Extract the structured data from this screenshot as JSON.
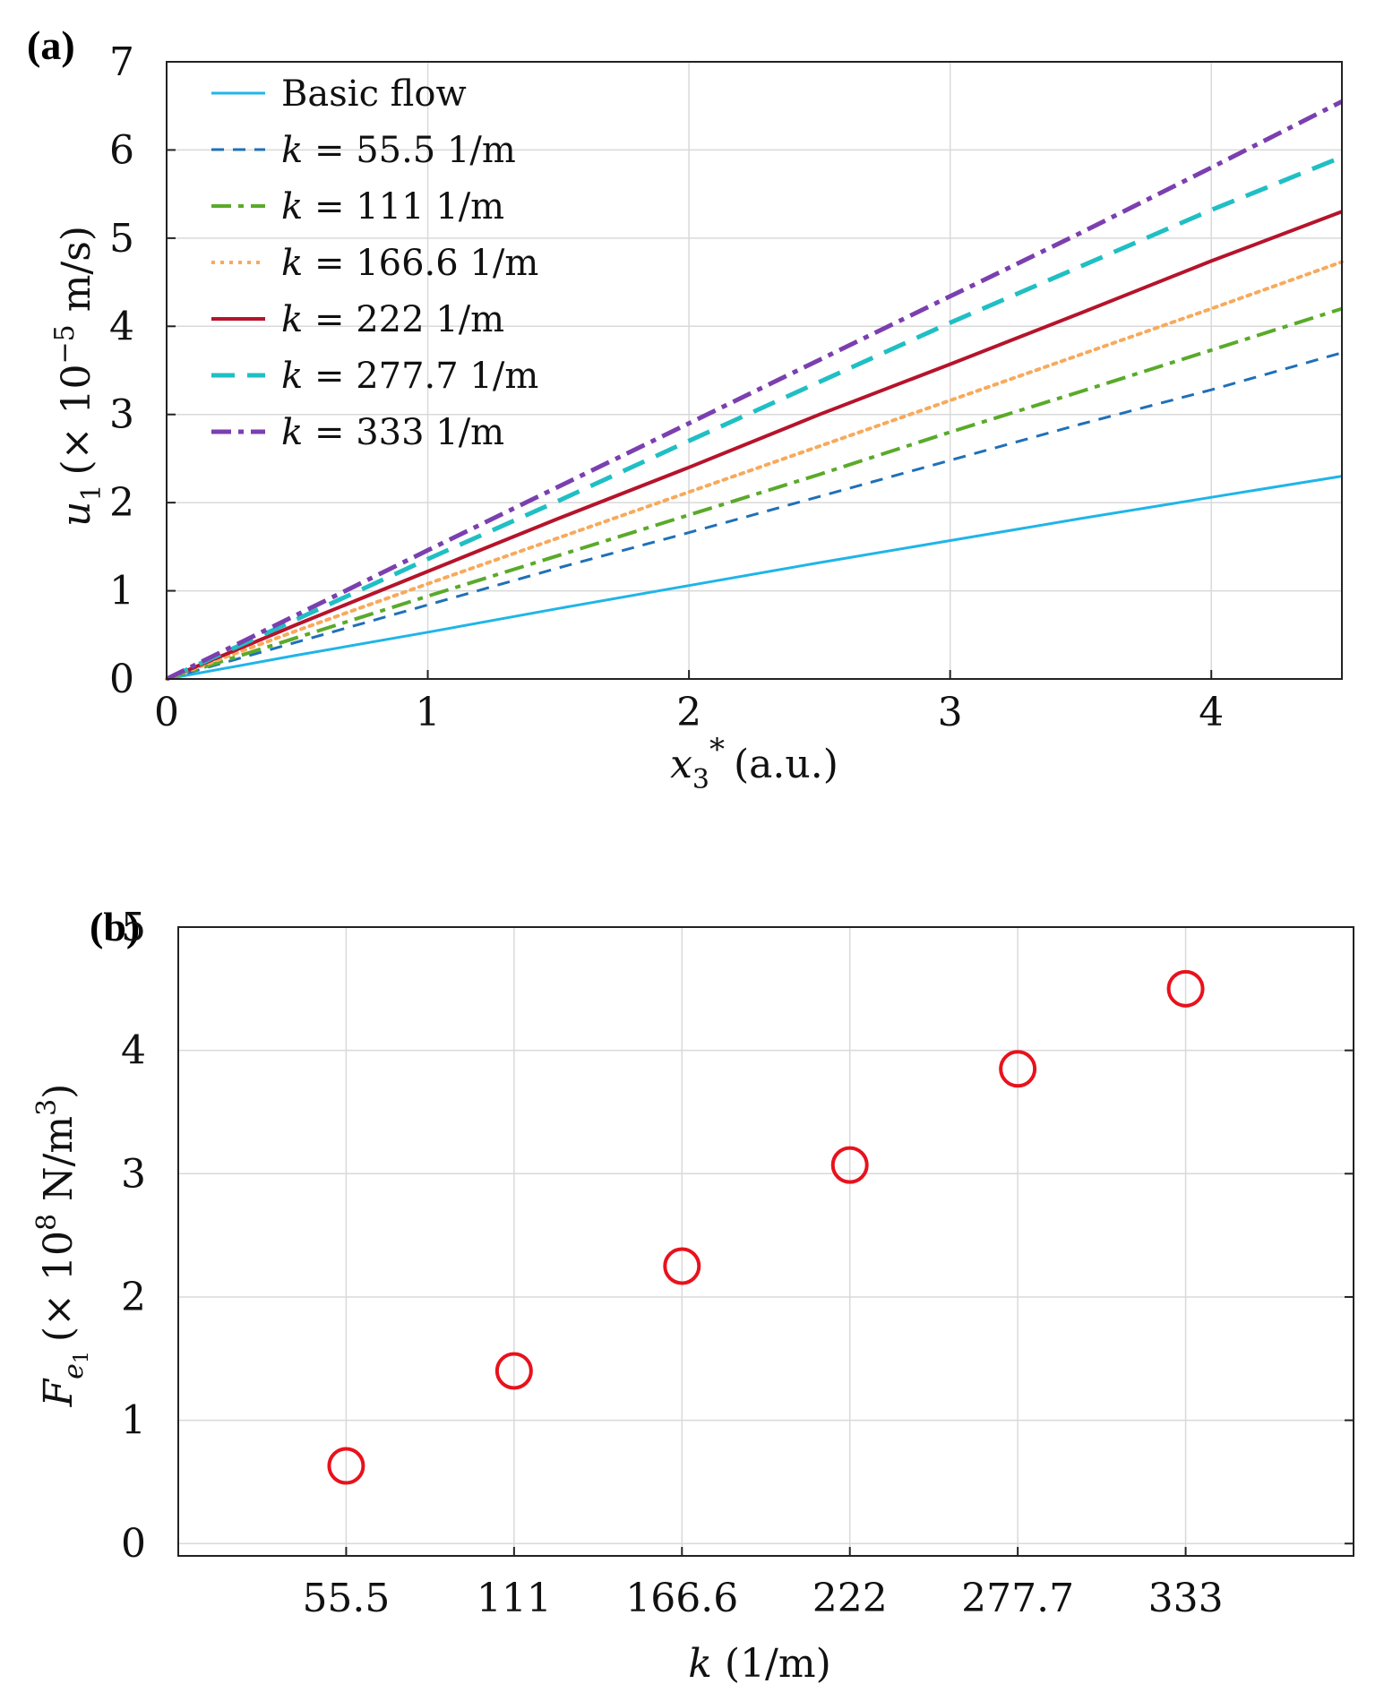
{
  "panels": {
    "a_label": "(a)",
    "b_label": "(b)"
  },
  "chart_data": [
    {
      "type": "line",
      "title": "",
      "xlabel": "x3* (a.u.)",
      "xlabel_parts": {
        "var": "x",
        "sub": "3",
        "sup": "*",
        "unit": "(a.u.)"
      },
      "ylabel": "u1 (× 10−5 m/s)",
      "ylabel_parts": {
        "var": "u",
        "sub": "1",
        "pre": "(× 10",
        "exp": "−5",
        "unit": " m/s)"
      },
      "xlim": [
        0,
        4.5
      ],
      "ylim": [
        0,
        7
      ],
      "xticks": [
        "0",
        "1",
        "2",
        "3",
        "4"
      ],
      "xtick_values": [
        0,
        1,
        2,
        3,
        4
      ],
      "yticks": [
        "0",
        "1",
        "2",
        "3",
        "4",
        "5",
        "6",
        "7"
      ],
      "ytick_values": [
        0,
        1,
        2,
        3,
        4,
        5,
        6,
        7
      ],
      "legend_position": "top-left",
      "x": [
        0,
        0.5,
        1,
        1.5,
        2,
        2.5,
        3,
        3.5,
        4,
        4.5
      ],
      "series": [
        {
          "name": "Basic flow",
          "legend_k": "",
          "legend_rest": "Basic flow",
          "color": "#1fb5e8",
          "style": "solid",
          "width": 3,
          "values": [
            0,
            0.27,
            0.53,
            0.8,
            1.06,
            1.32,
            1.57,
            1.82,
            2.06,
            2.3
          ]
        },
        {
          "name": "k = 55.5 1/m",
          "legend_k": "k",
          "legend_rest": " = 55.5 1/m",
          "color": "#1f70b8",
          "style": "dash-small",
          "width": 3,
          "values": [
            0,
            0.42,
            0.84,
            1.26,
            1.66,
            2.07,
            2.48,
            2.89,
            3.28,
            3.7
          ]
        },
        {
          "name": "k = 111 1/m",
          "legend_k": "k",
          "legend_rest": " = 111 1/m",
          "color": "#5aaa2a",
          "style": "dash-dot",
          "width": 4,
          "values": [
            0,
            0.47,
            0.94,
            1.4,
            1.86,
            2.32,
            2.8,
            3.26,
            3.73,
            4.2
          ]
        },
        {
          "name": "k = 166.6 1/m",
          "legend_k": "k",
          "legend_rest": " = 166.6 1/m",
          "color": "#f7aa5c",
          "style": "dotted",
          "width": 4,
          "values": [
            0,
            0.55,
            1.08,
            1.6,
            2.12,
            2.64,
            3.16,
            3.68,
            4.2,
            4.73
          ]
        },
        {
          "name": "k = 222 1/m",
          "legend_k": "k",
          "legend_rest": " = 222 1/m",
          "color": "#b5142b",
          "style": "solid",
          "width": 4,
          "values": [
            0,
            0.62,
            1.22,
            1.82,
            2.4,
            3.0,
            3.57,
            4.15,
            4.74,
            5.3
          ]
        },
        {
          "name": "k = 277.7 1/m",
          "legend_k": "k",
          "legend_rest": " = 277.7 1/m",
          "color": "#1fbfc4",
          "style": "dash-large",
          "width": 5,
          "values": [
            0,
            0.68,
            1.36,
            2.02,
            2.7,
            3.37,
            4.04,
            4.68,
            5.32,
            5.92
          ]
        },
        {
          "name": "k = 333 1/m",
          "legend_k": "k",
          "legend_rest": " = 333 1/m",
          "color": "#7b3fb0",
          "style": "dash-dot",
          "width": 5,
          "values": [
            0,
            0.73,
            1.46,
            2.18,
            2.9,
            3.62,
            4.34,
            5.06,
            5.8,
            6.55
          ]
        }
      ]
    },
    {
      "type": "scatter",
      "title": "",
      "xlabel": "k (1/m)",
      "xlabel_parts": {
        "var": "k",
        "unit": " (1/m)"
      },
      "ylabel": "Fe1 (× 108 N/m3)",
      "ylabel_parts": {
        "var": "F",
        "sub": "e",
        "subsub": "1",
        "pre": "(× 10",
        "exp": "8",
        "unit": " N/m",
        "exp2": "3",
        "close": ")"
      },
      "ylim": [
        -0.1,
        5
      ],
      "yticks": [
        "0",
        "1",
        "2",
        "3",
        "4",
        "5"
      ],
      "ytick_values": [
        0,
        1,
        2,
        3,
        4,
        5
      ],
      "categories": [
        "55.5",
        "111",
        "166.6",
        "222",
        "277.7",
        "333"
      ],
      "category_positions": [
        1,
        2,
        3,
        4,
        5,
        6
      ],
      "xlim": [
        0,
        7
      ],
      "marker": {
        "shape": "circle",
        "color": "#e8121c",
        "fill": "none"
      },
      "values": [
        0.63,
        1.4,
        2.25,
        3.07,
        3.85,
        4.5
      ]
    }
  ]
}
